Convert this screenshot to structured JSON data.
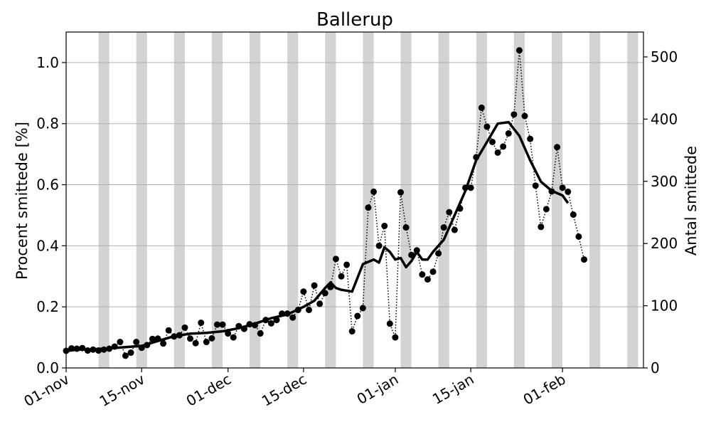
{
  "chart_data": {
    "type": "line",
    "title": "Ballerup",
    "ylabel": "Procent smittede [%]",
    "y2label": "Antal smittede",
    "x_range": [
      "2020-11-01",
      "2021-02-16"
    ],
    "ylim": [
      0,
      1.1
    ],
    "y2lim": [
      0,
      540
    ],
    "yticks": [
      0.0,
      0.2,
      0.4,
      0.6,
      0.8,
      1.0
    ],
    "yticklabels": [
      "0.0",
      "0.2",
      "0.4",
      "0.6",
      "0.8",
      "1.0"
    ],
    "y2ticks": [
      0,
      100,
      200,
      300,
      400,
      500
    ],
    "y2ticklabels": [
      "0",
      "100",
      "200",
      "300",
      "400",
      "500"
    ],
    "xticks": [
      "2020-11-01",
      "2020-11-15",
      "2020-12-01",
      "2020-12-15",
      "2021-01-01",
      "2021-01-15",
      "2021-02-01"
    ],
    "xticklabels": [
      "01-nov",
      "15-nov",
      "01-dec",
      "15-dec",
      "01-jan",
      "15-jan",
      "01-feb"
    ],
    "grid": "horizontal",
    "weekend_shading": true,
    "colors": {
      "points": "#000000",
      "line": "#000000",
      "weekend": "#d3d3d3",
      "grid": "#b0b0b0"
    },
    "weekend_days": [
      "2020-11-07",
      "2020-11-14",
      "2020-11-21",
      "2020-11-28",
      "2020-12-05",
      "2020-12-12",
      "2020-12-19",
      "2020-12-26",
      "2021-01-02",
      "2021-01-09",
      "2021-01-16",
      "2021-01-23",
      "2021-01-30",
      "2021-02-06",
      "2021-02-13"
    ],
    "series": [
      {
        "style": "dotted-markers",
        "x": [
          "2020-11-01",
          "2020-11-02",
          "2020-11-03",
          "2020-11-04",
          "2020-11-05",
          "2020-11-06",
          "2020-11-07",
          "2020-11-08",
          "2020-11-09",
          "2020-11-10",
          "2020-11-11",
          "2020-11-12",
          "2020-11-13",
          "2020-11-14",
          "2020-11-15",
          "2020-11-16",
          "2020-11-17",
          "2020-11-18",
          "2020-11-19",
          "2020-11-20",
          "2020-11-21",
          "2020-11-22",
          "2020-11-23",
          "2020-11-24",
          "2020-11-25",
          "2020-11-26",
          "2020-11-27",
          "2020-11-28",
          "2020-11-29",
          "2020-11-30",
          "2020-12-01",
          "2020-12-02",
          "2020-12-03",
          "2020-12-04",
          "2020-12-05",
          "2020-12-06",
          "2020-12-07",
          "2020-12-08",
          "2020-12-09",
          "2020-12-10",
          "2020-12-11",
          "2020-12-12",
          "2020-12-13",
          "2020-12-14",
          "2020-12-15",
          "2020-12-16",
          "2020-12-17",
          "2020-12-18",
          "2020-12-19",
          "2020-12-20",
          "2020-12-21",
          "2020-12-22",
          "2020-12-23",
          "2020-12-24",
          "2020-12-25",
          "2020-12-26",
          "2020-12-27",
          "2020-12-28",
          "2020-12-29",
          "2020-12-30",
          "2020-12-31",
          "2021-01-01",
          "2021-01-02",
          "2021-01-03",
          "2021-01-04",
          "2021-01-05",
          "2021-01-06",
          "2021-01-07",
          "2021-01-08",
          "2021-01-09",
          "2021-01-10",
          "2021-01-11",
          "2021-01-12",
          "2021-01-13",
          "2021-01-14",
          "2021-01-15",
          "2021-01-16",
          "2021-01-17",
          "2021-01-18",
          "2021-01-19",
          "2021-01-20",
          "2021-01-21",
          "2021-01-22",
          "2021-01-23",
          "2021-01-24",
          "2021-01-25",
          "2021-01-26",
          "2021-01-27",
          "2021-01-28",
          "2021-01-29",
          "2021-01-30",
          "2021-01-31",
          "2021-02-01",
          "2021-02-02",
          "2021-02-03",
          "2021-02-04",
          "2021-02-05"
        ],
        "values": [
          0.056,
          0.064,
          0.063,
          0.065,
          0.057,
          0.06,
          0.057,
          0.06,
          0.063,
          0.07,
          0.085,
          0.04,
          0.05,
          0.085,
          0.066,
          0.075,
          0.095,
          0.096,
          0.08,
          0.123,
          0.103,
          0.107,
          0.132,
          0.096,
          0.081,
          0.148,
          0.085,
          0.097,
          0.142,
          0.142,
          0.113,
          0.1,
          0.137,
          0.128,
          0.143,
          0.14,
          0.113,
          0.157,
          0.146,
          0.157,
          0.178,
          0.178,
          0.165,
          0.19,
          0.25,
          0.19,
          0.27,
          0.21,
          0.245,
          0.265,
          0.357,
          0.3,
          0.338,
          0.12,
          0.17,
          0.196,
          0.525,
          0.577,
          0.4,
          0.465,
          0.145,
          0.1,
          0.575,
          0.46,
          0.37,
          0.385,
          0.306,
          0.29,
          0.315,
          0.375,
          0.46,
          0.51,
          0.452,
          0.522,
          0.59,
          0.59,
          0.69,
          0.852,
          0.79,
          0.74,
          0.705,
          0.725,
          0.768,
          0.83,
          1.04,
          0.825,
          0.75,
          0.597,
          0.462,
          0.52,
          0.578,
          0.723,
          0.59,
          0.577,
          0.502,
          0.43,
          0.355
        ]
      },
      {
        "style": "solid-thick",
        "x": [
          "2020-11-01",
          "2020-11-03",
          "2020-11-06",
          "2020-11-09",
          "2020-11-12",
          "2020-11-15",
          "2020-11-18",
          "2020-11-21",
          "2020-11-24",
          "2020-11-27",
          "2020-11-30",
          "2020-12-03",
          "2020-12-06",
          "2020-12-09",
          "2020-12-12",
          "2020-12-15",
          "2020-12-17",
          "2020-12-19",
          "2020-12-20",
          "2020-12-21",
          "2020-12-22",
          "2020-12-24",
          "2020-12-26",
          "2020-12-28",
          "2020-12-29",
          "2020-12-30",
          "2020-12-31",
          "2021-01-01",
          "2021-01-02",
          "2021-01-03",
          "2021-01-04",
          "2021-01-05",
          "2021-01-06",
          "2021-01-07",
          "2021-01-08",
          "2021-01-10",
          "2021-01-12",
          "2021-01-14",
          "2021-01-16",
          "2021-01-18",
          "2021-01-20",
          "2021-01-22",
          "2021-01-24",
          "2021-01-26",
          "2021-01-28",
          "2021-01-30",
          "2021-02-01",
          "2021-02-02"
        ],
        "values": [
          0.055,
          0.06,
          0.061,
          0.064,
          0.068,
          0.072,
          0.088,
          0.104,
          0.112,
          0.115,
          0.12,
          0.13,
          0.145,
          0.163,
          0.175,
          0.2,
          0.22,
          0.262,
          0.28,
          0.262,
          0.256,
          0.25,
          0.34,
          0.355,
          0.345,
          0.395,
          0.38,
          0.355,
          0.36,
          0.33,
          0.35,
          0.38,
          0.355,
          0.355,
          0.38,
          0.42,
          0.5,
          0.58,
          0.68,
          0.74,
          0.8,
          0.805,
          0.76,
          0.68,
          0.61,
          0.58,
          0.565,
          0.54
        ]
      }
    ]
  }
}
